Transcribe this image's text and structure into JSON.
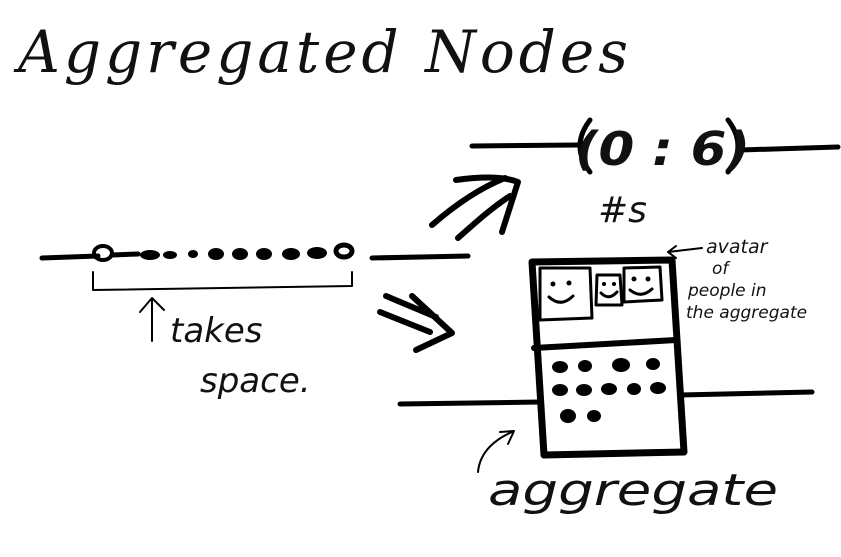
{
  "title": "Aggregated Nodes",
  "labels": {
    "takes_space_line1": "takes",
    "takes_space_line2": "space.",
    "count_badge": "(0 : 6)",
    "count_badge_caption": "#s",
    "avatar_note_line1": "avatar",
    "avatar_note_line2": "of",
    "avatar_note_line3": "people in",
    "avatar_note_line4": "the aggregate",
    "aggregate_caption": "aggregate"
  },
  "colors": {
    "ink": "#000000",
    "paper": "#ffffff"
  }
}
